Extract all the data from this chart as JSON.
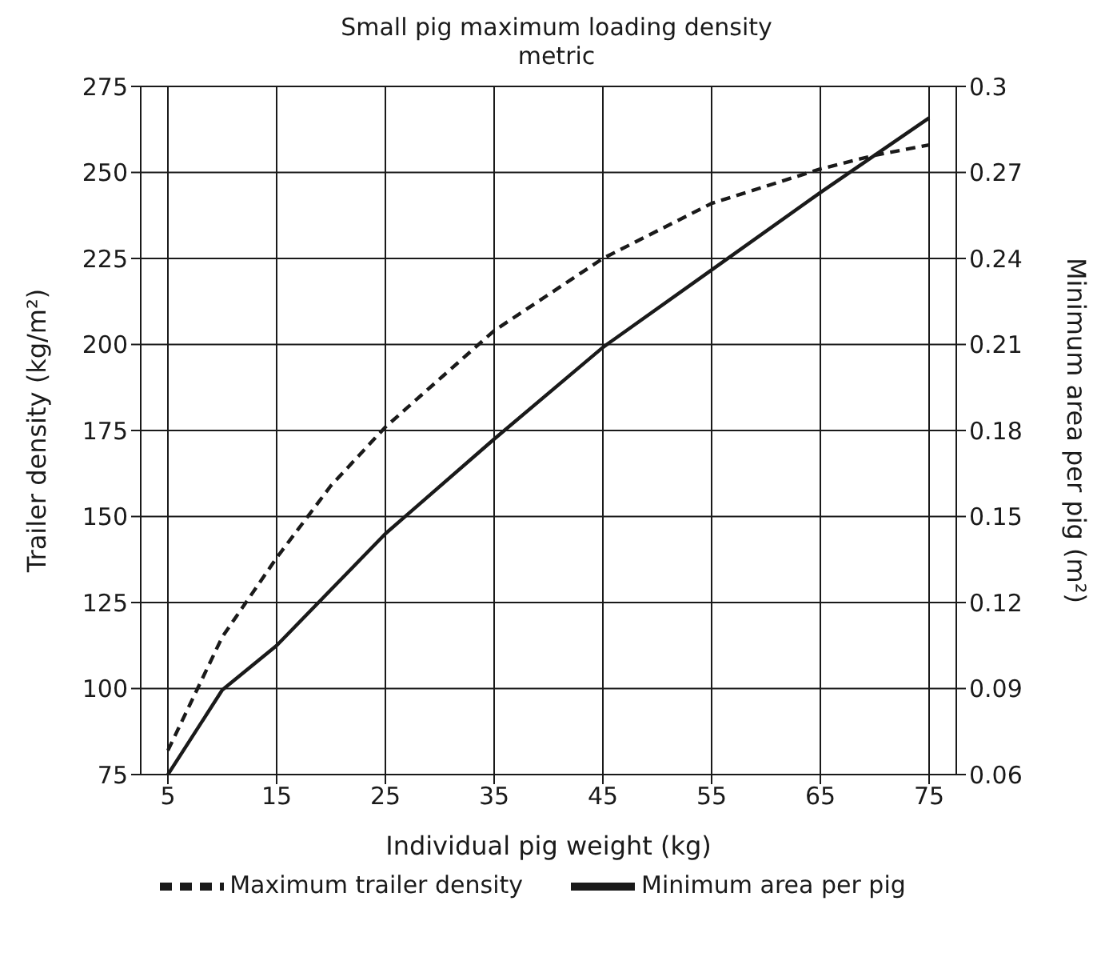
{
  "chart_data": {
    "type": "line",
    "title": "Small pig maximum loading density",
    "subtitle": "metric",
    "xlabel": "Individual pig weight (kg)",
    "ylabel": "Trailer density (kg/m²)",
    "y2label": "Minimum area per pig (m²)",
    "x": [
      5,
      10,
      15,
      25,
      35,
      45,
      55,
      65,
      75
    ],
    "series": [
      {
        "name": "Minimum area per pig",
        "color": "#1a1a1a",
        "axis": "y2",
        "line_style": "solid",
        "values": [
          0.06,
          0.0895,
          0.105,
          0.144,
          0.177,
          0.209,
          0.236,
          0.263,
          0.289
        ]
      },
      {
        "name": "Maximum trailer density",
        "color": "#1a1a1a",
        "axis": "y",
        "line_style": "dashed",
        "x": [
          5,
          10,
          15,
          20,
          25,
          35,
          45,
          55,
          65,
          70,
          75
        ],
        "values": [
          82,
          115,
          138,
          159,
          176,
          204,
          225,
          241,
          251,
          255,
          258
        ]
      }
    ],
    "xlim": [
      2.5,
      77.5
    ],
    "xticks": [
      5,
      15,
      25,
      35,
      45,
      55,
      65,
      75
    ],
    "ylim": [
      75,
      275
    ],
    "yticks": [
      75,
      100,
      125,
      150,
      175,
      200,
      225,
      250,
      275
    ],
    "y2lim": [
      0.06,
      0.3
    ],
    "y2ticks": [
      0.06,
      0.09,
      0.12,
      0.15,
      0.18,
      0.21,
      0.24,
      0.27,
      0.3
    ],
    "grid": true,
    "legend": "bottom",
    "marker": "none"
  }
}
